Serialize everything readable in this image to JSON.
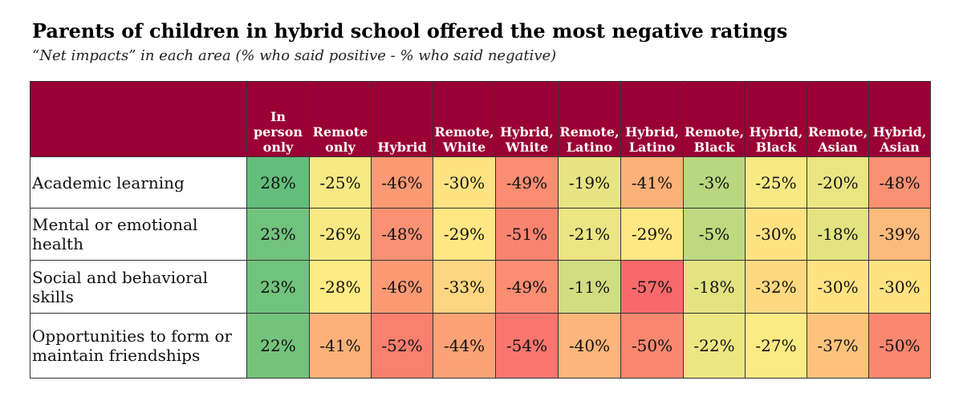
{
  "chart_data": {
    "type": "heatmap",
    "title": "Parents of children in hybrid school offered the most negative ratings",
    "subtitle": "“Net impacts” in each area (% who said positive - % who said negative)",
    "columns": [
      [
        "In",
        "person",
        "only"
      ],
      [
        "Remote",
        "only"
      ],
      [
        "Hybrid"
      ],
      [
        "Remote,",
        "White"
      ],
      [
        "Hybrid,",
        "White"
      ],
      [
        "Remote,",
        "Latino"
      ],
      [
        "Hybrid,",
        "Latino"
      ],
      [
        "Remote,",
        "Black"
      ],
      [
        "Hybrid,",
        "Black"
      ],
      [
        "Remote,",
        "Asian"
      ],
      [
        "Hybrid,",
        "Asian"
      ]
    ],
    "rows": [
      {
        "label": "Academic learning",
        "values": [
          28,
          -25,
          -46,
          -30,
          -49,
          -19,
          -41,
          -3,
          -25,
          -20,
          -48
        ]
      },
      {
        "label": "Mental or emotional health",
        "values": [
          23,
          -26,
          -48,
          -29,
          -51,
          -21,
          -29,
          -5,
          -30,
          -18,
          -39
        ]
      },
      {
        "label": "Social and behavioral skills",
        "values": [
          23,
          -28,
          -46,
          -33,
          -49,
          -11,
          -57,
          -18,
          -32,
          -30,
          -30
        ]
      },
      {
        "label": "Opportunities to form or maintain friendships",
        "values": [
          22,
          -41,
          -52,
          -44,
          -54,
          -40,
          -50,
          -22,
          -27,
          -37,
          -50
        ]
      }
    ],
    "value_suffix": "%",
    "colors": {
      "header_bg": "#9a0035",
      "positive": "#63be7b",
      "neutral": "#ffeb84",
      "negative": "#f8696b"
    }
  }
}
